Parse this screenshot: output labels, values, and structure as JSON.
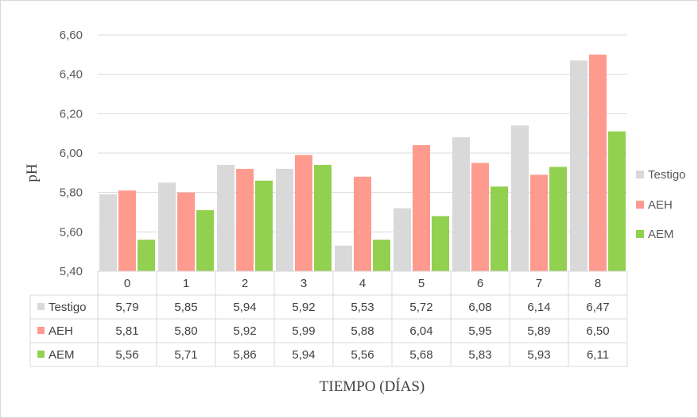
{
  "chart_data": {
    "type": "bar",
    "categories": [
      "0",
      "1",
      "2",
      "3",
      "4",
      "5",
      "6",
      "7",
      "8"
    ],
    "series": [
      {
        "name": "Testigo",
        "color": "#d9d9d9",
        "values": [
          5.79,
          5.85,
          5.94,
          5.92,
          5.53,
          5.72,
          6.08,
          6.14,
          6.47
        ],
        "labels": [
          "5,79",
          "5,85",
          "5,94",
          "5,92",
          "5,53",
          "5,72",
          "6,08",
          "6,14",
          "6,47"
        ]
      },
      {
        "name": "AEH",
        "color": "#ff9a8f",
        "values": [
          5.81,
          5.8,
          5.92,
          5.99,
          5.88,
          6.04,
          5.95,
          5.89,
          6.5
        ],
        "labels": [
          "5,81",
          "5,80",
          "5,92",
          "5,99",
          "5,88",
          "6,04",
          "5,95",
          "5,89",
          "6,50"
        ]
      },
      {
        "name": "AEM",
        "color": "#92d050",
        "values": [
          5.56,
          5.71,
          5.86,
          5.94,
          5.56,
          5.68,
          5.83,
          5.93,
          6.11
        ],
        "labels": [
          "5,56",
          "5,71",
          "5,86",
          "5,94",
          "5,56",
          "5,68",
          "5,83",
          "5,93",
          "6,11"
        ]
      }
    ],
    "xlabel": "TIEMPO (DÍAS)",
    "ylabel": "pH",
    "ylim": [
      5.4,
      6.6
    ],
    "yticks": [
      5.4,
      5.6,
      5.8,
      6.0,
      6.2,
      6.4,
      6.6
    ],
    "ytick_labels": [
      "5,40",
      "5,60",
      "5,80",
      "6,00",
      "6,20",
      "6,40",
      "6,60"
    ],
    "grid": true,
    "legend_position": "right",
    "data_table": true
  }
}
